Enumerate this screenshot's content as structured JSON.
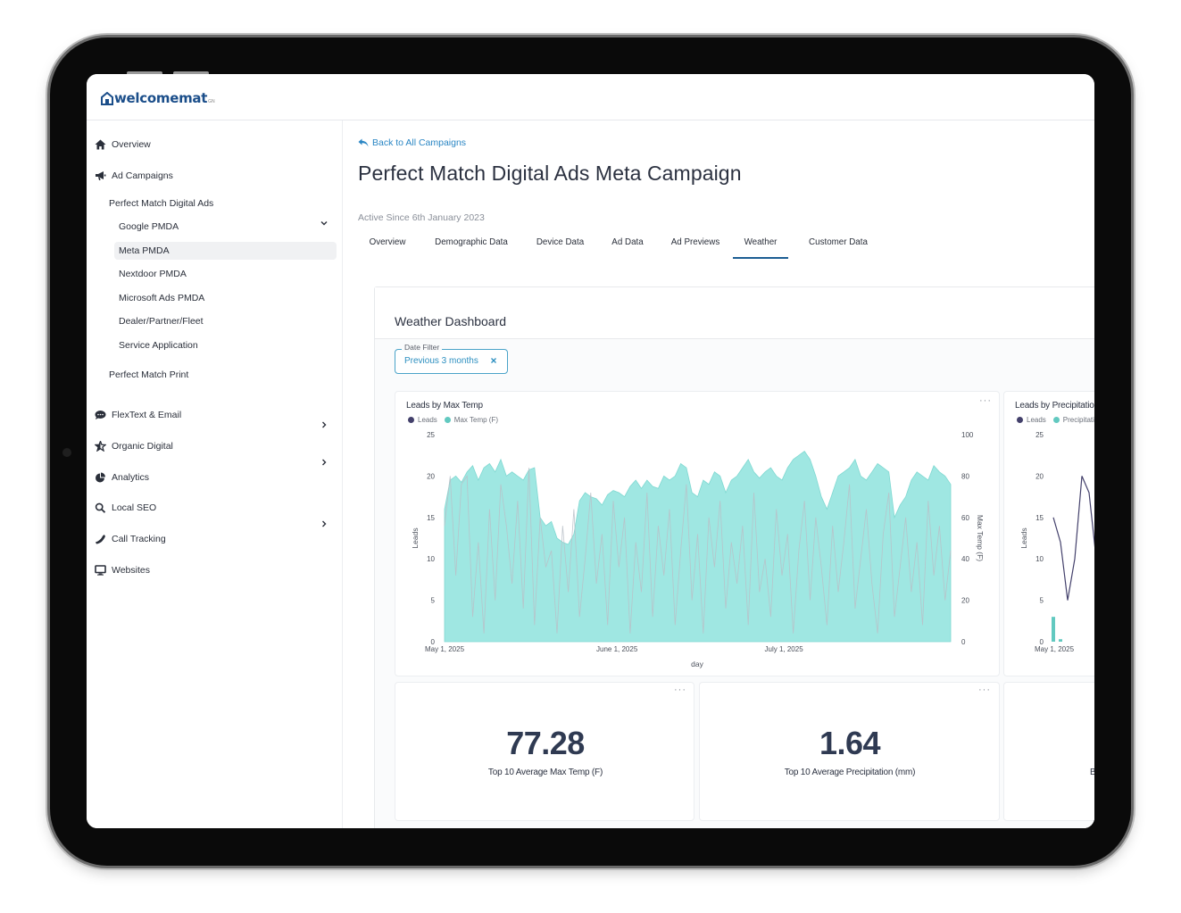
{
  "brand": {
    "name": "welcomemat",
    "tm": "GN"
  },
  "colors": {
    "brand": "#1b4e8a",
    "link": "#2a86c4",
    "accent_teal": "#9fe7e2",
    "leads_line": "#43406b",
    "tab_underline": "#1c5d93"
  },
  "sidebar": {
    "items": [
      {
        "label": "Overview",
        "icon": "home-icon"
      },
      {
        "label": "Ad Campaigns",
        "icon": "megaphone-icon",
        "expanded": true
      },
      {
        "label": "FlexText & Email",
        "icon": "chat-icon"
      },
      {
        "label": "Organic Digital",
        "icon": "star-icon"
      },
      {
        "label": "Analytics",
        "icon": "pie-chart-icon"
      },
      {
        "label": "Local SEO",
        "icon": "search-icon"
      },
      {
        "label": "Call Tracking",
        "icon": "phone-icon"
      },
      {
        "label": "Websites",
        "icon": "monitor-icon"
      }
    ],
    "campaign_groups": [
      {
        "label": "Perfect Match Digital Ads",
        "expanded": true
      },
      {
        "label": "Perfect Match Print",
        "expanded": false
      }
    ],
    "digital_ads_children": [
      "Google PMDA",
      "Meta PMDA",
      "Nextdoor PMDA",
      "Microsoft Ads PMDA",
      "Dealer/Partner/Fleet",
      "Service Application"
    ],
    "active_child": "Meta PMDA"
  },
  "main": {
    "back_label": "Back to All Campaigns",
    "title": "Perfect Match Digital Ads Meta Campaign",
    "active_since": "Active Since 6th January 2023",
    "tabs": [
      "Overview",
      "Demographic Data",
      "Device Data",
      "Ad Data",
      "Ad Previews",
      "Weather",
      "Customer Data"
    ],
    "active_tab": "Weather"
  },
  "dashboard": {
    "title": "Weather Dashboard",
    "filter": {
      "label": "Date Filter",
      "value": "Previous 3 months"
    },
    "stats": [
      {
        "value": "77.28",
        "label": "Top 10 Average Max Temp (F)"
      },
      {
        "value": "1.64",
        "label": "Top 10 Average Precipitation (mm)"
      },
      {
        "value": "",
        "label": "Bo"
      }
    ],
    "more_label": "···"
  },
  "chart_data": [
    {
      "type": "area",
      "title": "Leads by Max Temp",
      "xlabel": "day",
      "ylabel": "Leads",
      "y2label": "Max Temp (F)",
      "ylim": [
        0,
        25
      ],
      "y2lim": [
        0,
        100
      ],
      "yticks": [
        "0",
        "5",
        "10",
        "15",
        "20",
        "25"
      ],
      "y2ticks": [
        "0",
        "20",
        "40",
        "60",
        "80",
        "100"
      ],
      "xticks": [
        "May 1, 2025",
        "June 1, 2025",
        "July 1, 2025"
      ],
      "legend": [
        "Leads",
        "Max Temp (F)"
      ],
      "legend_position": "top-left",
      "x_range": [
        "2025-05-01",
        "2025-07-31"
      ],
      "series": [
        {
          "name": "Max Temp (F)",
          "axis": "right",
          "style": "area",
          "color": "#9fe7e2",
          "values": [
            64,
            78,
            80,
            77,
            82,
            85,
            78,
            84,
            86,
            82,
            88,
            80,
            82,
            80,
            78,
            83,
            84,
            60,
            56,
            58,
            50,
            48,
            47,
            52,
            68,
            72,
            70,
            69,
            66,
            71,
            73,
            72,
            70,
            75,
            78,
            74,
            78,
            75,
            74,
            80,
            78,
            80,
            86,
            84,
            72,
            70,
            78,
            76,
            82,
            80,
            72,
            78,
            80,
            84,
            88,
            82,
            79,
            82,
            84,
            80,
            78,
            84,
            88,
            90,
            92,
            88,
            80,
            70,
            64,
            72,
            80,
            82,
            84,
            88,
            80,
            78,
            82,
            86,
            84,
            82,
            60,
            66,
            70,
            78,
            82,
            80,
            78,
            85,
            82,
            80,
            76
          ]
        },
        {
          "name": "Leads",
          "axis": "left",
          "style": "line",
          "color": "#43406b",
          "values": [
            14,
            20,
            8,
            19,
            20,
            3,
            12,
            1,
            16,
            5,
            19,
            14,
            7,
            17,
            4,
            21,
            2,
            15,
            9,
            11,
            1,
            14,
            6,
            16,
            3,
            10,
            18,
            7,
            13,
            2,
            17,
            9,
            15,
            1,
            12,
            6,
            18,
            3,
            14,
            8,
            16,
            2,
            11,
            19,
            5,
            13,
            1,
            15,
            9,
            17,
            4,
            12,
            7,
            14,
            2,
            18,
            6,
            10,
            3,
            16,
            8,
            13,
            1,
            11,
            17,
            5,
            15,
            9,
            2,
            14,
            6,
            12,
            19,
            4,
            10,
            16,
            7,
            1,
            13,
            18,
            3,
            9,
            15,
            6,
            12,
            2,
            17,
            8,
            14,
            5,
            11
          ]
        }
      ]
    },
    {
      "type": "line",
      "title": "Leads by Precipitatio",
      "ylabel": "Leads",
      "ylim": [
        0,
        25
      ],
      "yticks": [
        "0",
        "5",
        "10",
        "15",
        "20",
        "25"
      ],
      "xticks": [
        "May 1, 2025"
      ],
      "legend": [
        "Leads",
        "Precipitati"
      ],
      "series": [
        {
          "name": "Leads",
          "color": "#43406b",
          "values": [
            15,
            12,
            5,
            10,
            20,
            18,
            10,
            8,
            14,
            19
          ]
        },
        {
          "name": "Precipitati",
          "color": "#62c9c0",
          "values": [
            3,
            0.3
          ]
        }
      ]
    }
  ]
}
